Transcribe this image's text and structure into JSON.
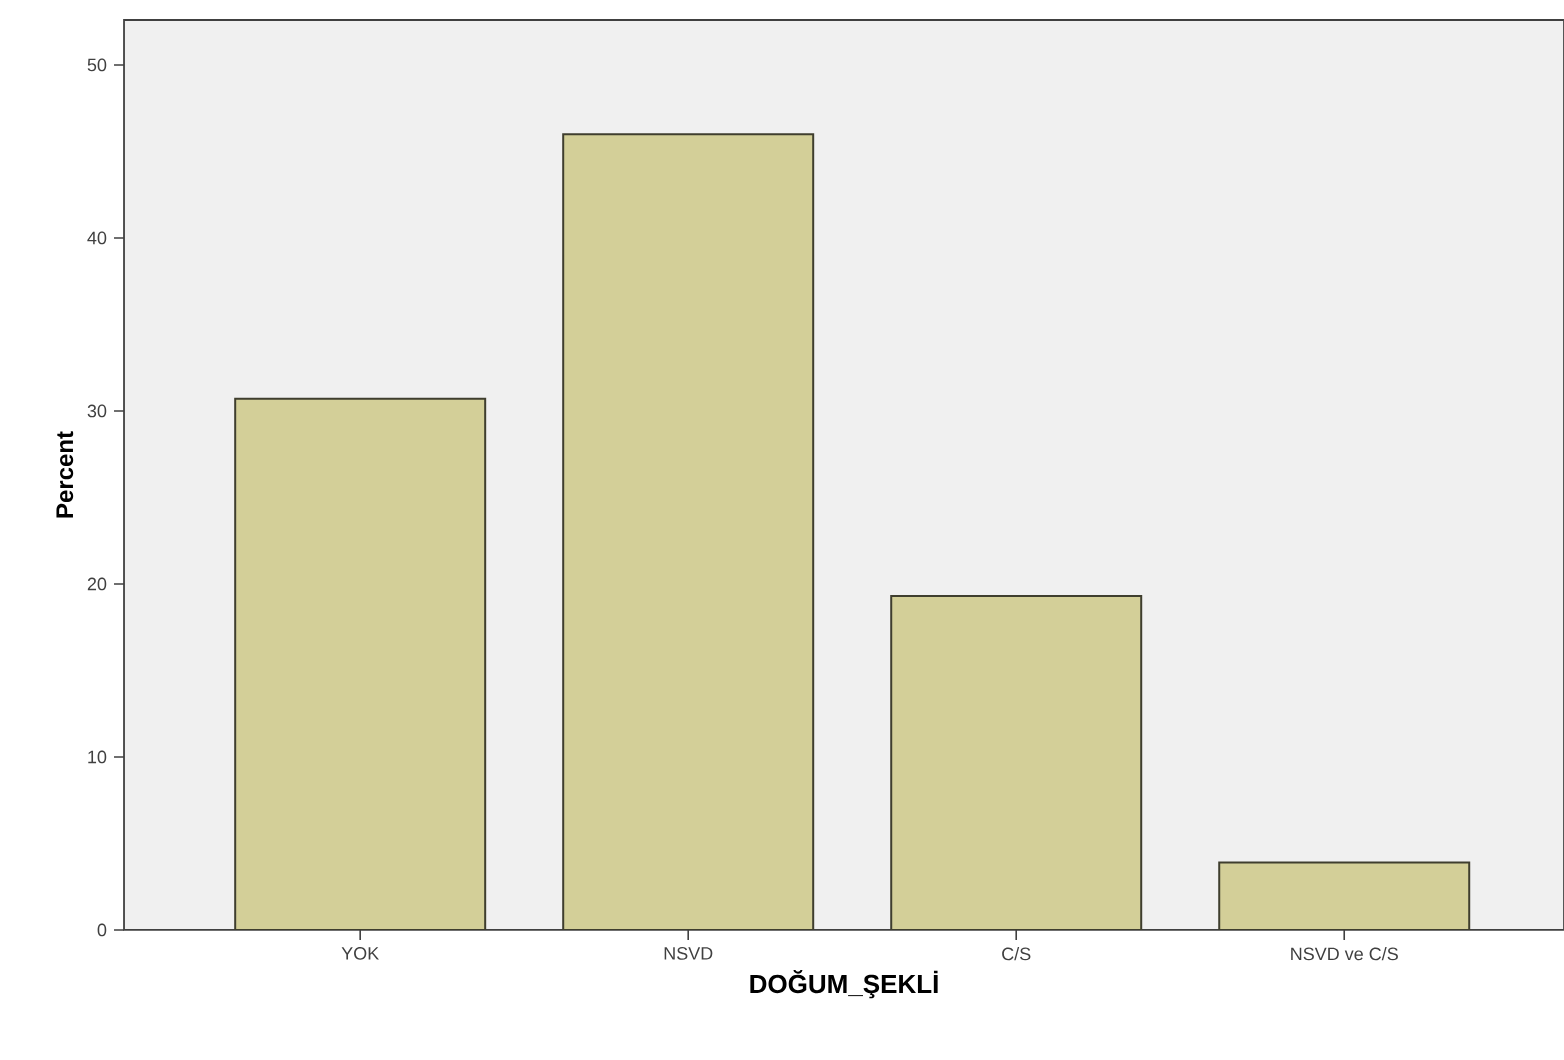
{
  "chart_data": {
    "type": "bar",
    "xlabel": "DOĞUM_ŞEKLİ",
    "ylabel": "Percent",
    "categories": [
      "YOK",
      "NSVD",
      "C/S",
      "NSVD ve C/S"
    ],
    "values": [
      30.7,
      46.0,
      19.3,
      3.9
    ],
    "color": "#d3cf98",
    "ylim": [
      0,
      52.6
    ],
    "yticks": [
      0,
      10,
      20,
      30,
      40,
      50
    ],
    "grid": false
  }
}
